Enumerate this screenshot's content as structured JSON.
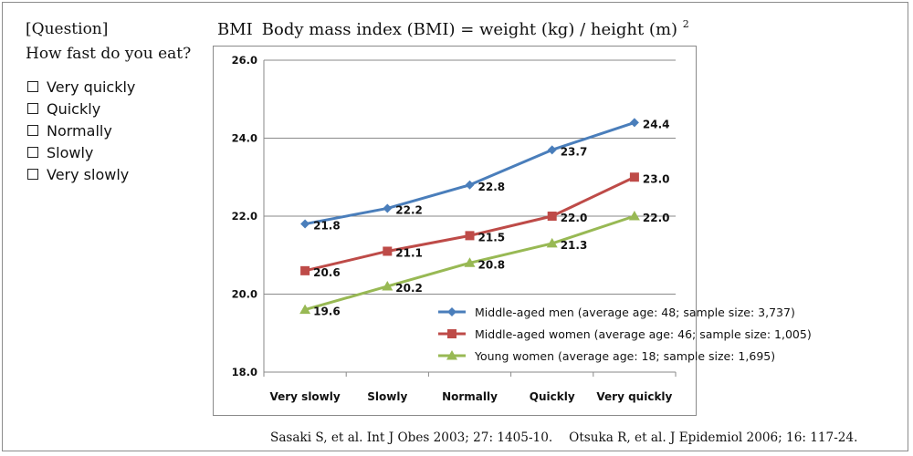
{
  "question": {
    "title": "[Question]",
    "text": "How fast do you eat?",
    "options": [
      "Very quickly",
      "Quickly",
      "Normally",
      "Slowly",
      "Very slowly"
    ]
  },
  "heading": {
    "label": "BMI",
    "formula": "Body mass index (BMI) = weight (kg) / height (m)",
    "superscript": "2"
  },
  "citation": {
    "ref1": "Sasaki S, et al. Int J Obes 2003; 27: 1405-10.",
    "ref2": "Otsuka R, et al. J Epidemiol 2006; 16: 117-24."
  },
  "chart_data": {
    "type": "line",
    "categories": [
      "Very slowly",
      "Slowly",
      "Normally",
      "Quickly",
      "Very quickly"
    ],
    "ylim": [
      18.0,
      26.0
    ],
    "yticks": [
      "18.0",
      "20.0",
      "22.0",
      "24.0",
      "26.0"
    ],
    "grid": true,
    "legend_position": "bottom-right",
    "series": [
      {
        "name": "Middle-aged men (average age: 48; sample size: 3,737)",
        "values": [
          21.8,
          22.2,
          22.8,
          23.7,
          24.4
        ],
        "labels": [
          "21.8",
          "22.2",
          "22.8",
          "23.7",
          "24.4"
        ],
        "color": "#4a7ebb",
        "marker": "diamond"
      },
      {
        "name": "Middle-aged women (average age: 46; sample size: 1,005)",
        "values": [
          20.6,
          21.1,
          21.5,
          22.0,
          23.0
        ],
        "labels": [
          "20.6",
          "21.1",
          "21.5",
          "22.0",
          "23.0"
        ],
        "color": "#be4b48",
        "marker": "square"
      },
      {
        "name": "Young women (average age: 18; sample size: 1,695)",
        "values": [
          19.6,
          20.2,
          20.8,
          21.3,
          22.0
        ],
        "labels": [
          "19.6",
          "20.2",
          "20.8",
          "21.3",
          "22.0"
        ],
        "color": "#98b954",
        "marker": "triangle"
      }
    ]
  }
}
